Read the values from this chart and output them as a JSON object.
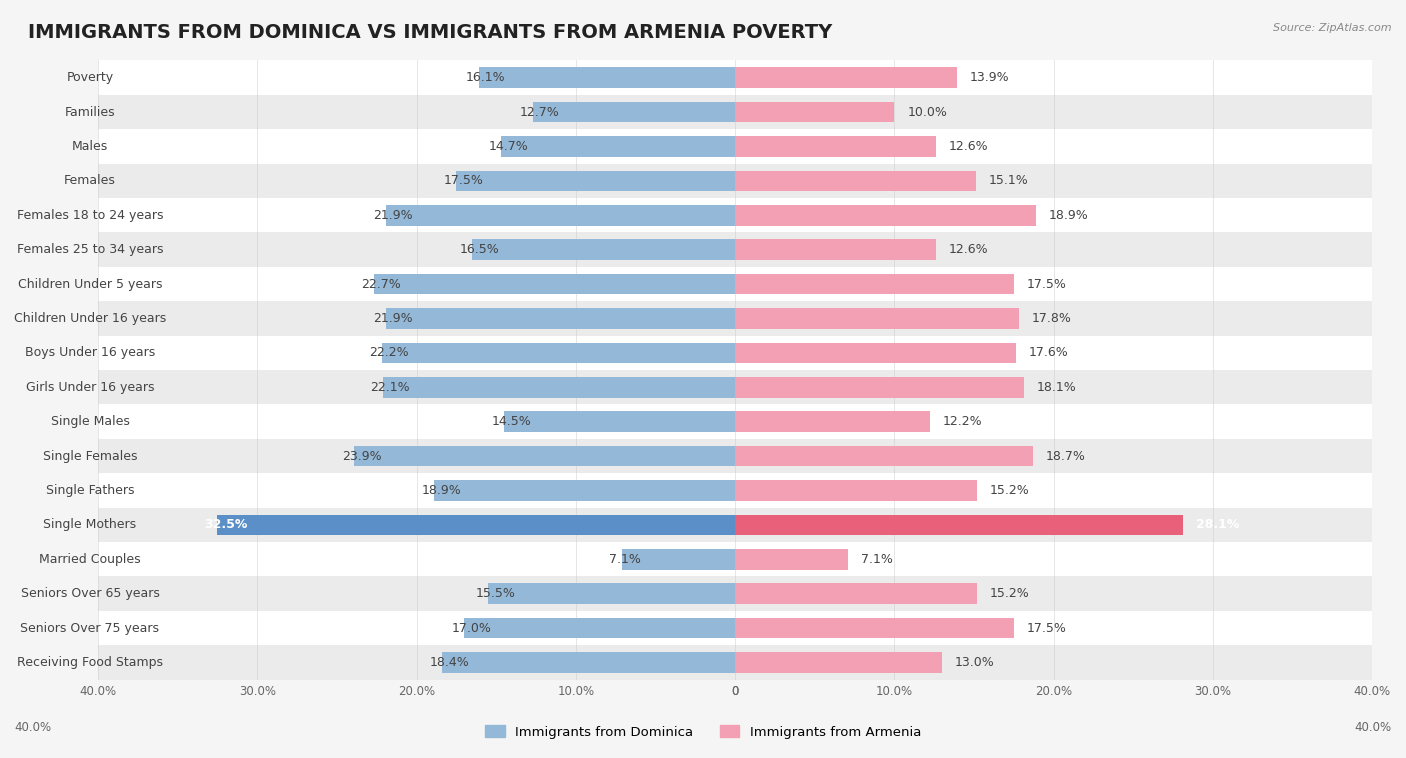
{
  "title": "IMMIGRANTS FROM DOMINICA VS IMMIGRANTS FROM ARMENIA POVERTY",
  "source": "Source: ZipAtlas.com",
  "categories": [
    "Poverty",
    "Families",
    "Males",
    "Females",
    "Females 18 to 24 years",
    "Females 25 to 34 years",
    "Children Under 5 years",
    "Children Under 16 years",
    "Boys Under 16 years",
    "Girls Under 16 years",
    "Single Males",
    "Single Females",
    "Single Fathers",
    "Single Mothers",
    "Married Couples",
    "Seniors Over 65 years",
    "Seniors Over 75 years",
    "Receiving Food Stamps"
  ],
  "dominica_values": [
    16.1,
    12.7,
    14.7,
    17.5,
    21.9,
    16.5,
    22.7,
    21.9,
    22.2,
    22.1,
    14.5,
    23.9,
    18.9,
    32.5,
    7.1,
    15.5,
    17.0,
    18.4
  ],
  "armenia_values": [
    13.9,
    10.0,
    12.6,
    15.1,
    18.9,
    12.6,
    17.5,
    17.8,
    17.6,
    18.1,
    12.2,
    18.7,
    15.2,
    28.1,
    7.1,
    15.2,
    17.5,
    13.0
  ],
  "dominica_color": "#94b8d8",
  "armenia_color": "#f4a0b4",
  "dominica_highlight_color": "#5b8fc7",
  "armenia_highlight_color": "#e8607a",
  "background_color": "#f5f5f5",
  "xlim": 40.0,
  "legend_label_dominica": "Immigrants from Dominica",
  "legend_label_armenia": "Immigrants from Armenia",
  "title_fontsize": 14,
  "label_fontsize": 9,
  "value_fontsize": 9
}
